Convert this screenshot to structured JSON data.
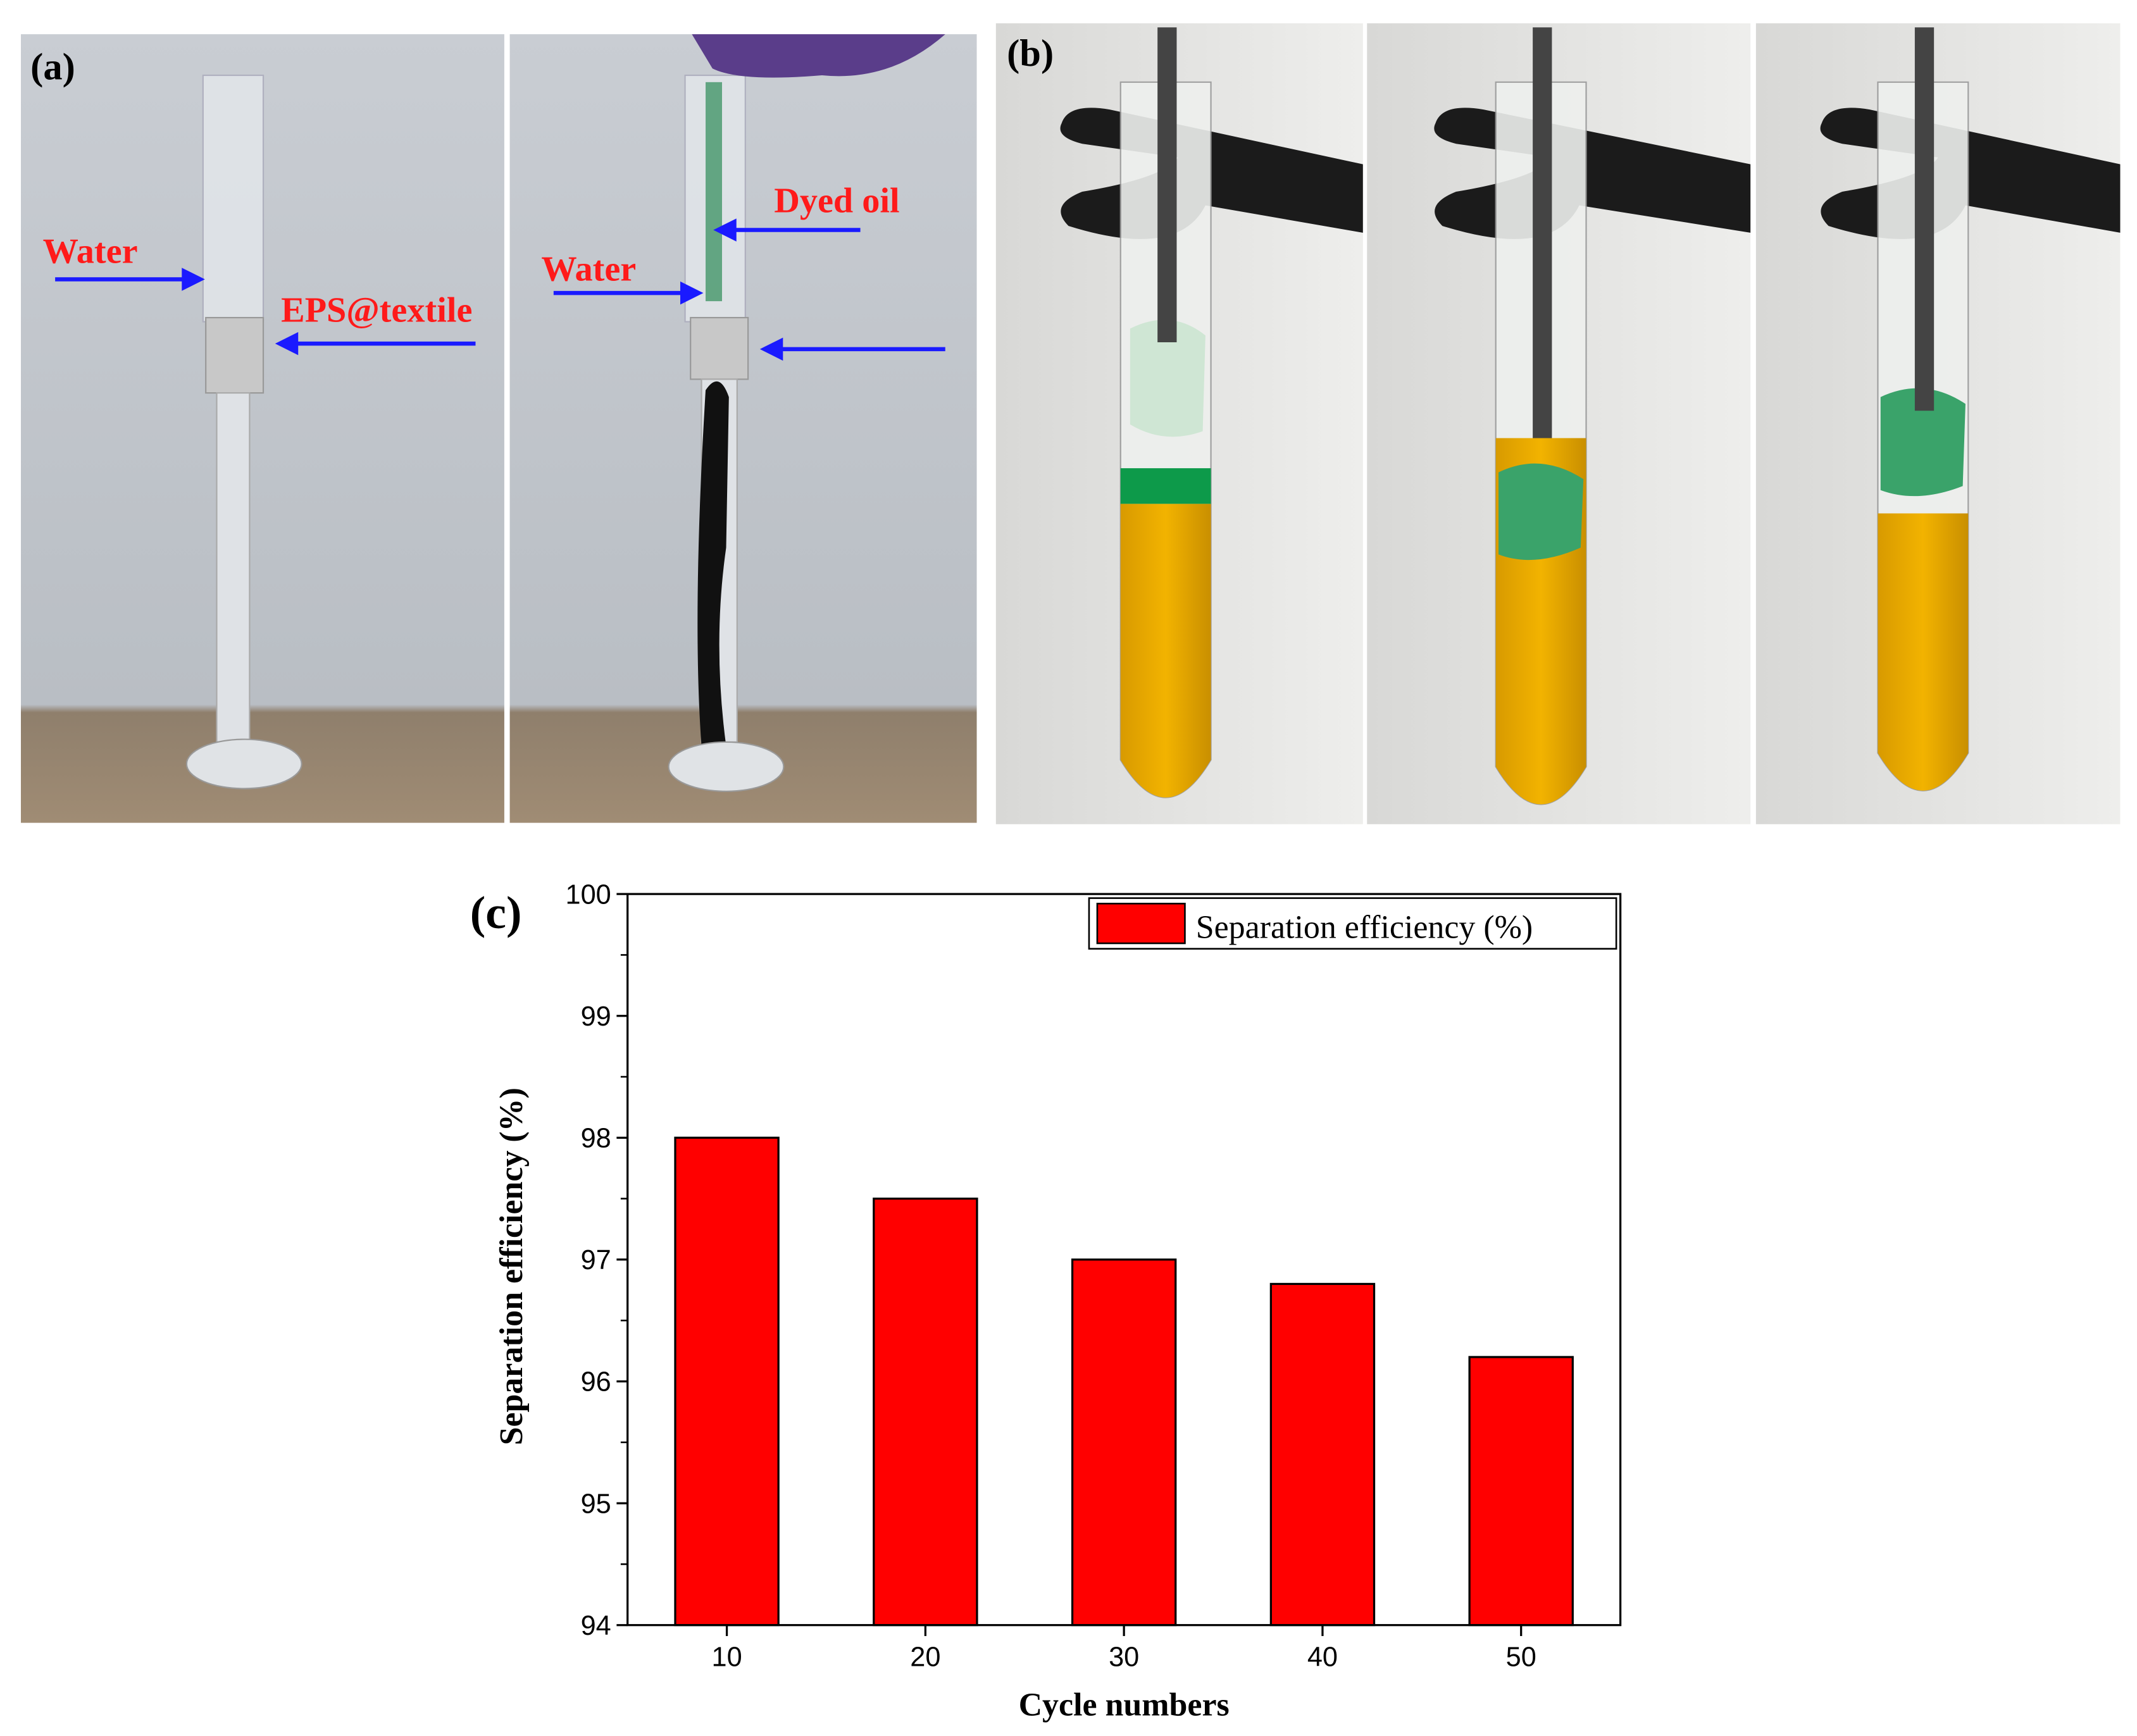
{
  "panel_a": {
    "label": "(a)",
    "annotations": [
      "Water",
      "EPS@textile",
      "Water",
      "Dyed oil"
    ]
  },
  "panel_b": {
    "label": "(b)"
  },
  "chart_data": {
    "type": "bar",
    "panel_label": "(c)",
    "xlabel": "Cycle numbers",
    "ylabel": "Separation efficiency (%)",
    "x": [
      10,
      20,
      30,
      40,
      50
    ],
    "series": [
      {
        "name": "Separation efficiency (%)",
        "color": "#ff0000",
        "values": [
          98,
          97.5,
          97,
          96.8,
          96.2
        ]
      }
    ],
    "xlim": [
      5,
      55
    ],
    "xticks": [
      10,
      20,
      30,
      40,
      50
    ],
    "ylim": [
      94,
      100
    ],
    "yticks": [
      94,
      95,
      96,
      97,
      98,
      99,
      100
    ],
    "legend": "upper right"
  }
}
